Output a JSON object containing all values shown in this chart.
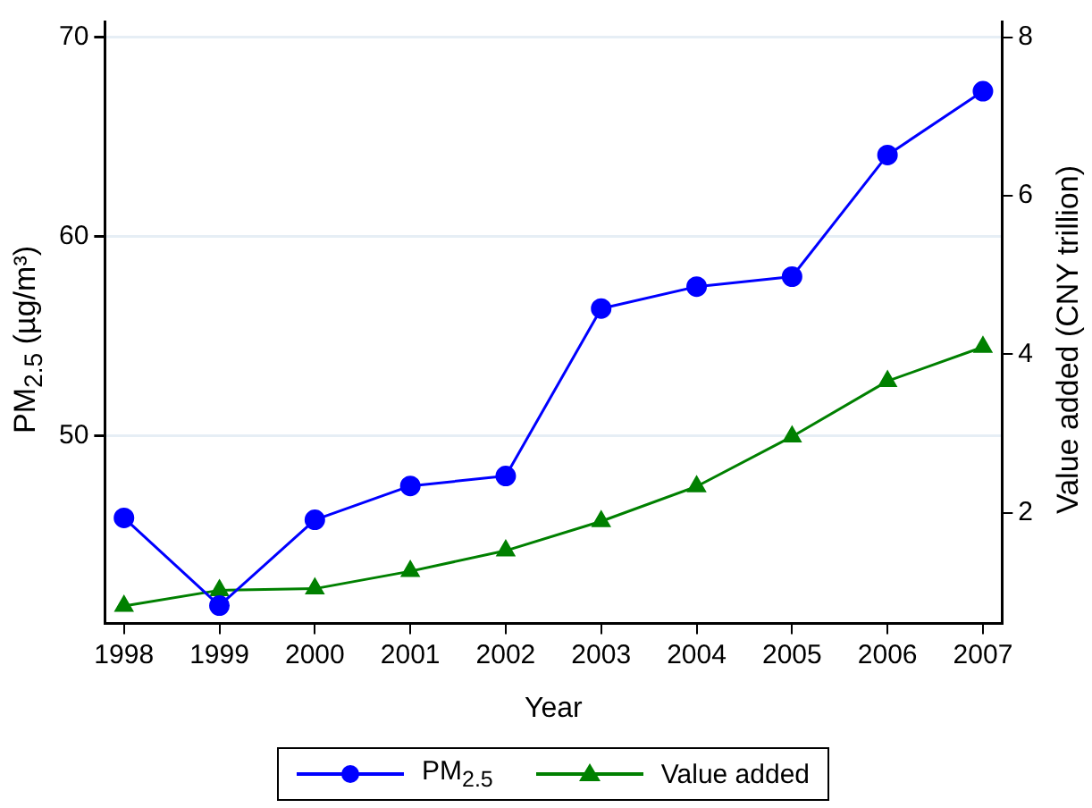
{
  "chart_data": {
    "type": "line",
    "xlabel": "Year",
    "ylabel": "PM$_{2.5}$ (µg/m³)",
    "y2label": "Value added (CNY trillion)",
    "x": [
      1998,
      1999,
      2000,
      2001,
      2002,
      2003,
      2004,
      2005,
      2006,
      2007
    ],
    "xlim": [
      1997.8,
      2007.2
    ],
    "xticks": [
      1998,
      1999,
      2000,
      2001,
      2002,
      2003,
      2004,
      2005,
      2006,
      2007
    ],
    "ylim": [
      40.6,
      70.8
    ],
    "yticks": [
      50,
      60,
      70
    ],
    "y2lim": [
      0.6,
      8.2
    ],
    "y2ticks": [
      2,
      4,
      6,
      8
    ],
    "series": [
      {
        "name": "PM$_{2.5}$",
        "color": "#0000ff",
        "marker": "circle",
        "values": [
          45.9,
          41.5,
          45.8,
          47.5,
          48.0,
          56.4,
          57.5,
          58.0,
          64.1,
          67.3
        ]
      },
      {
        "name": "Value added",
        "color": "#008000",
        "marker": "triangle",
        "axis": "y2",
        "values": [
          0.82,
          1.02,
          1.04,
          1.26,
          1.52,
          1.89,
          2.33,
          2.96,
          3.66,
          4.09
        ]
      }
    ],
    "grid": "y",
    "legend": "bottom"
  }
}
